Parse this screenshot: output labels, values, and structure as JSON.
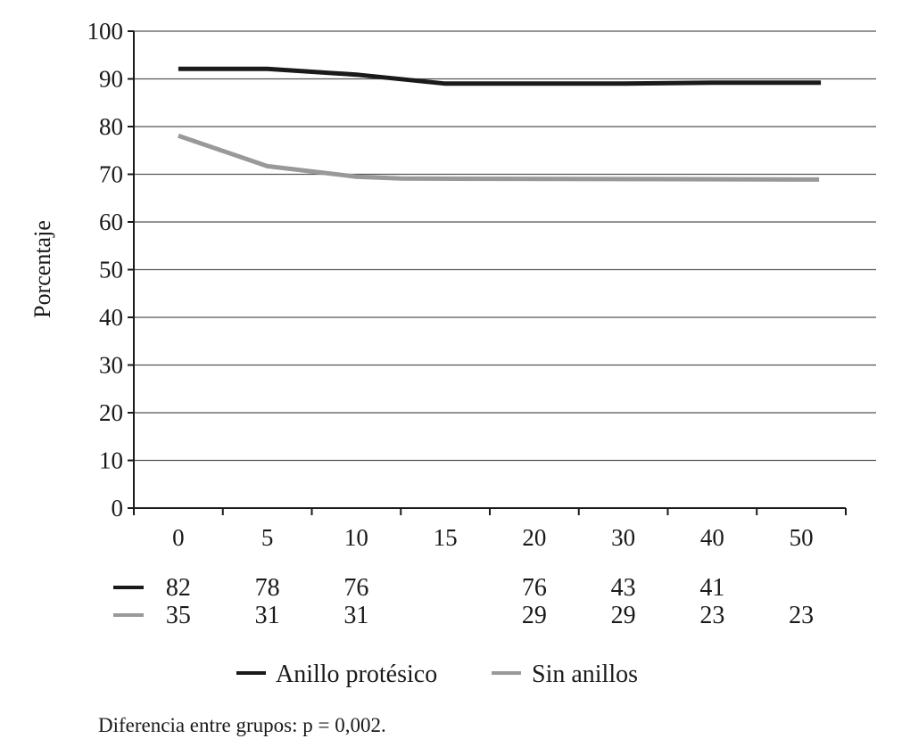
{
  "chart_data": {
    "type": "line",
    "title": "",
    "xlabel": "",
    "ylabel": "Porcentaje",
    "ylim": [
      0,
      100
    ],
    "yticks": [
      "0",
      "10",
      "20",
      "30",
      "40",
      "50",
      "60",
      "70",
      "80",
      "90",
      "100"
    ],
    "categories": [
      "0",
      "5",
      "10",
      "15",
      "20",
      "30",
      "40",
      "50"
    ],
    "grid": true,
    "series": [
      {
        "name": "Anillo protésico",
        "color": "#1a1a1a",
        "points": [
          [
            0,
            92.1
          ],
          [
            1,
            92.1
          ],
          [
            2,
            90.9
          ],
          [
            3,
            89.0
          ],
          [
            5,
            89.0
          ],
          [
            6,
            89.2
          ],
          [
            7.22,
            89.2
          ]
        ]
      },
      {
        "name": "Sin anillos",
        "color": "#999999",
        "points": [
          [
            0,
            78.1
          ],
          [
            1,
            71.7
          ],
          [
            2,
            69.5
          ],
          [
            2.5,
            69.1
          ],
          [
            7.2,
            68.9
          ]
        ]
      }
    ],
    "risk_table": [
      {
        "series": "Anillo protésico",
        "values": [
          "82",
          "78",
          "76",
          "",
          "76",
          "43",
          "41",
          ""
        ]
      },
      {
        "series": "Sin anillos",
        "values": [
          "35",
          "31",
          "31",
          "",
          "29",
          "29",
          "23",
          "23"
        ]
      }
    ],
    "legend": [
      "Anillo protésico",
      "Sin anillos"
    ],
    "legend_position": "bottom",
    "footnote": "Diferencia entre grupos: p = 0,002."
  }
}
